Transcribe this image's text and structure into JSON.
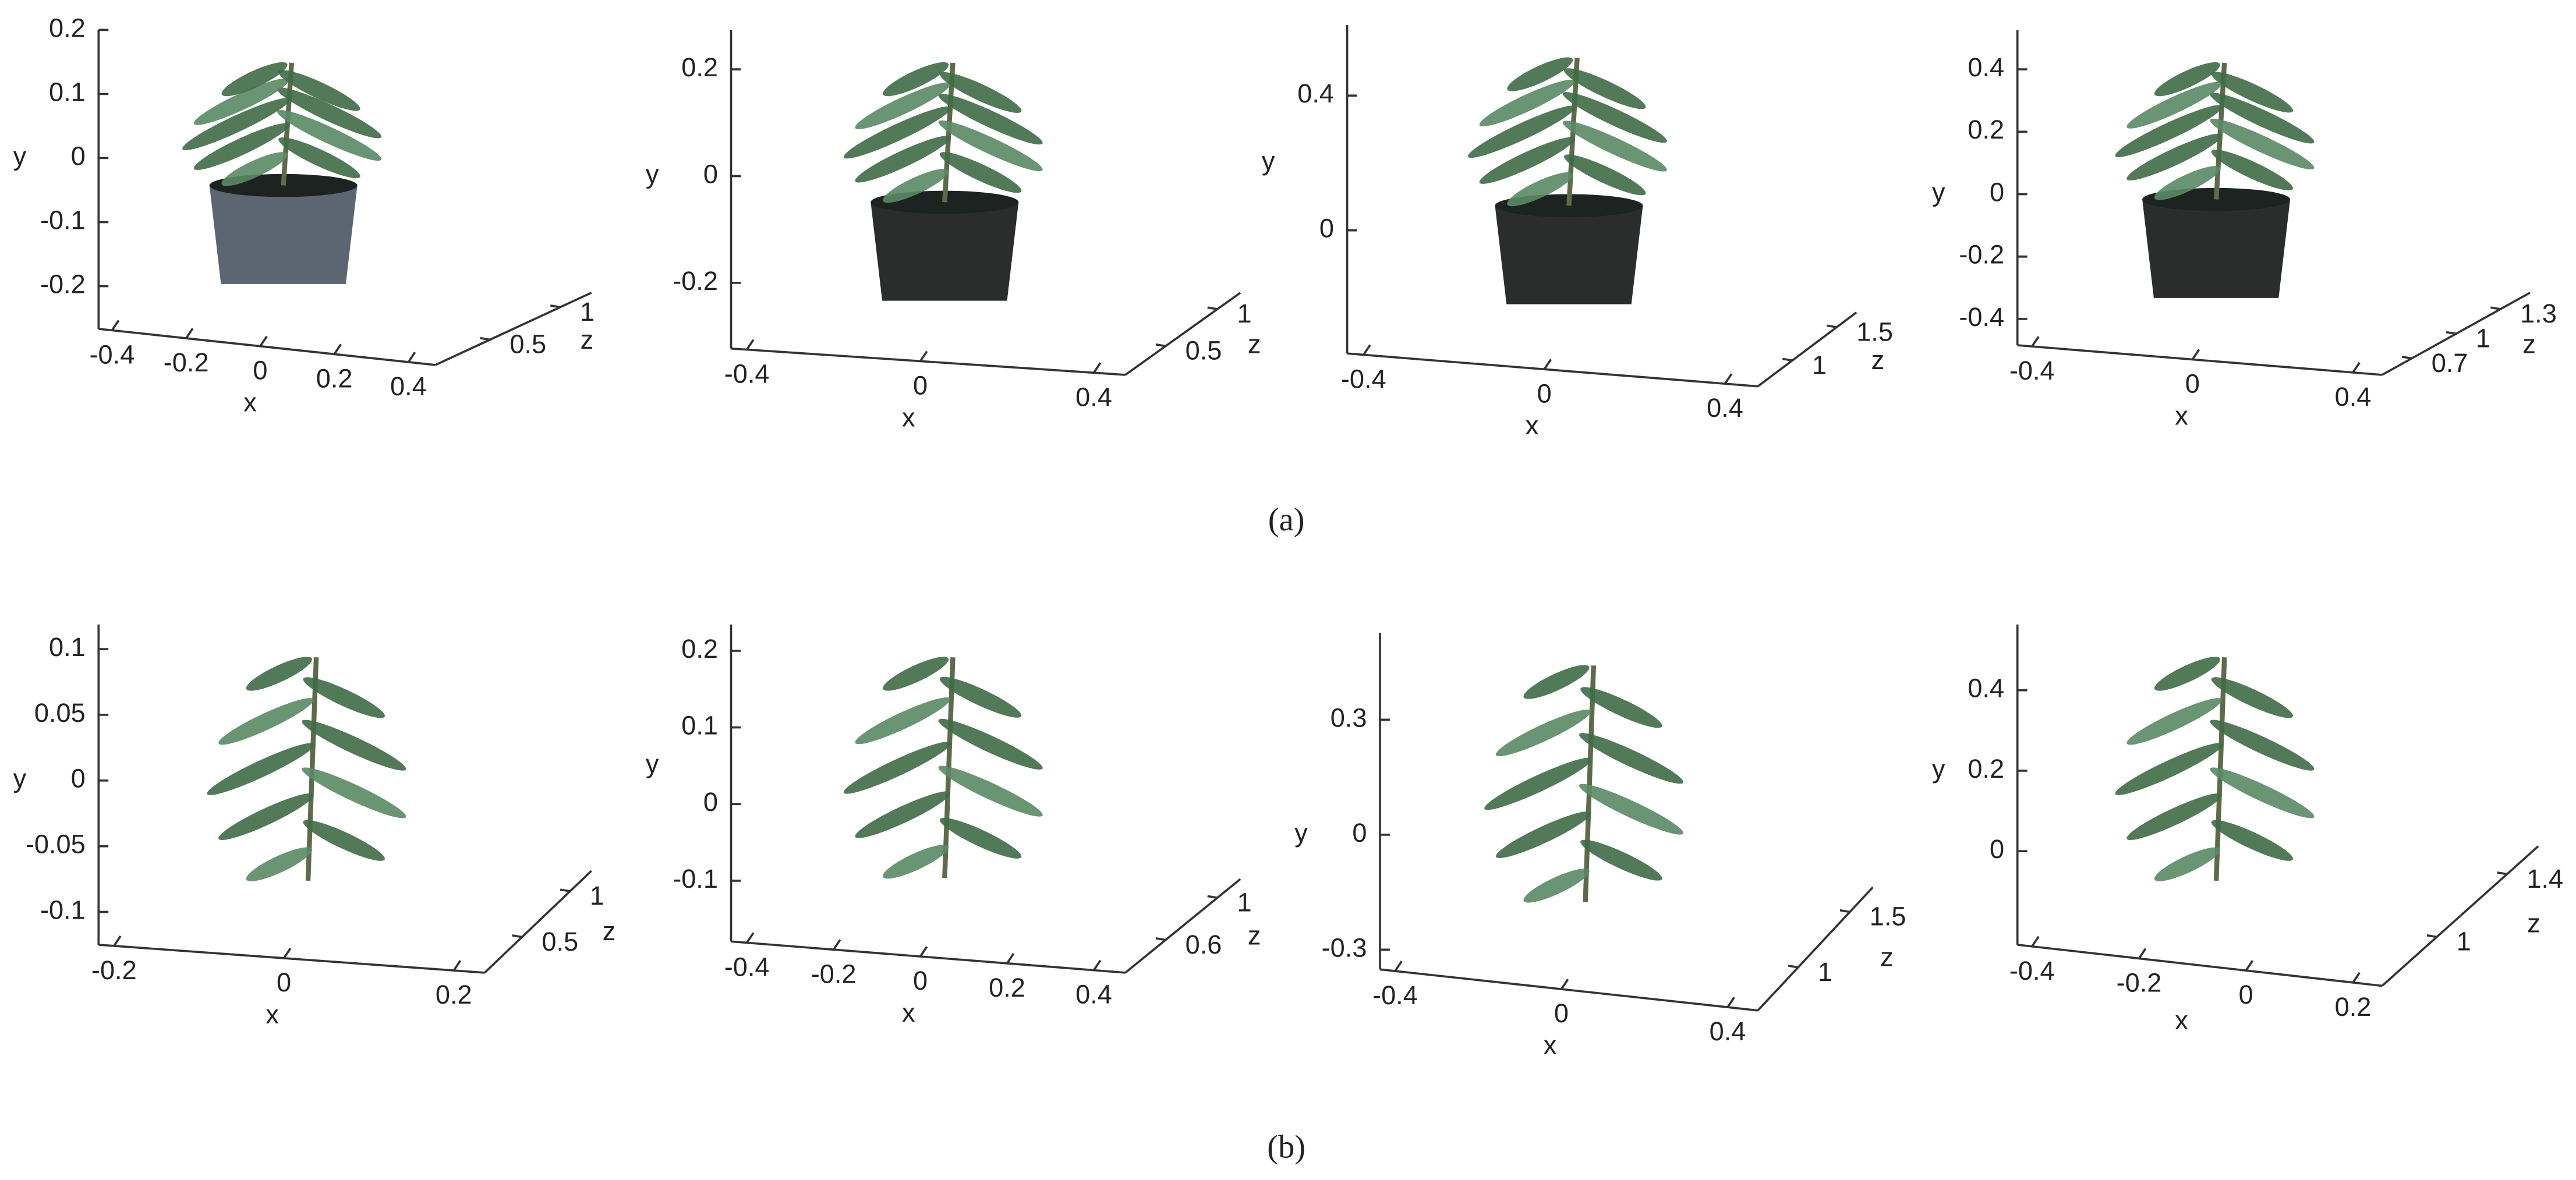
{
  "rows": [
    {
      "caption": "(a)",
      "panels": [
        {
          "xlabel": "x",
          "ylabel": "y",
          "zlabel": "z",
          "xticks": [
            -0.4,
            -0.2,
            0,
            0.2,
            0.4
          ],
          "yticks": [
            -0.2,
            -0.1,
            0,
            0.1,
            0.2
          ],
          "zticks": [
            0.5,
            1
          ]
        },
        {
          "xlabel": "x",
          "ylabel": "y",
          "zlabel": "z",
          "xticks": [
            -0.4,
            0,
            0.4
          ],
          "yticks": [
            -0.2,
            0,
            0.2
          ],
          "zticks": [
            0.5,
            1
          ]
        },
        {
          "xlabel": "x",
          "ylabel": "y",
          "zlabel": "z",
          "xticks": [
            -0.4,
            0,
            0.4
          ],
          "yticks": [
            0,
            0.4
          ],
          "zticks": [
            1,
            1.5
          ]
        },
        {
          "xlabel": "x",
          "ylabel": "y",
          "zlabel": "z",
          "xticks": [
            -0.4,
            0,
            0.4
          ],
          "yticks": [
            -0.4,
            -0.2,
            0,
            0.2,
            0.4
          ],
          "zticks": [
            0.7,
            1,
            1.3
          ]
        }
      ]
    },
    {
      "caption": "(b)",
      "panels": [
        {
          "xlabel": "x",
          "ylabel": "y",
          "zlabel": "z",
          "xticks": [
            -0.2,
            0,
            0.2
          ],
          "yticks": [
            -0.1,
            -0.05,
            0,
            0.05,
            0.1
          ],
          "zticks": [
            0.5,
            1
          ]
        },
        {
          "xlabel": "x",
          "ylabel": "y",
          "zlabel": "z",
          "xticks": [
            -0.4,
            -0.2,
            0,
            0.2,
            0.4
          ],
          "yticks": [
            -0.1,
            0,
            0.1,
            0.2
          ],
          "zticks": [
            0.6,
            1
          ]
        },
        {
          "xlabel": "x",
          "ylabel": "y",
          "zlabel": "z",
          "xticks": [
            -0.4,
            0,
            0.4
          ],
          "yticks": [
            -0.3,
            0,
            0.3
          ],
          "zticks": [
            1,
            1.5
          ]
        },
        {
          "xlabel": "x",
          "ylabel": "y",
          "zlabel": "z",
          "xticks": [
            -0.4,
            -0.2,
            0,
            0.2
          ],
          "yticks": [
            0,
            0.2,
            0.4
          ],
          "zticks": [
            1,
            1.4
          ]
        }
      ]
    }
  ]
}
